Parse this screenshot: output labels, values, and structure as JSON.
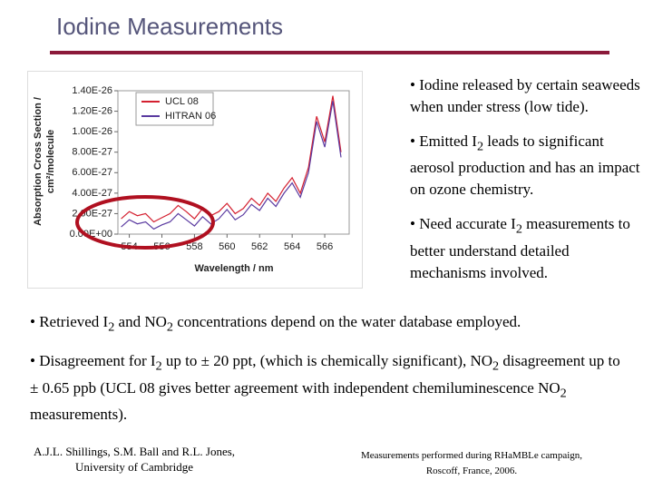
{
  "title": "Iodine Measurements",
  "chart_data": {
    "type": "line",
    "y_label": [
      "Absorption Cross Section /",
      "cm²/molecule"
    ],
    "x_label": "Wavelength / nm",
    "xlim": [
      553.3,
      567.5
    ],
    "xticks": [
      554,
      556,
      558,
      560,
      562,
      564,
      566
    ],
    "ylim": [
      0,
      1.4e-26
    ],
    "yticks": [
      {
        "value": 0,
        "label": "0.00E+00"
      },
      {
        "value": 2e-27,
        "label": "2.00E-27"
      },
      {
        "value": 4e-27,
        "label": "4.00E-27"
      },
      {
        "value": 6e-27,
        "label": "6.00E-27"
      },
      {
        "value": 8e-27,
        "label": "8.00E-27"
      },
      {
        "value": 1e-26,
        "label": "1.00E-26"
      },
      {
        "value": 1.2e-26,
        "label": "1.20E-26"
      },
      {
        "value": 1.4e-26,
        "label": "1.40E-26"
      }
    ],
    "legend": "upper left",
    "x": [
      553.5,
      554,
      554.5,
      555,
      555.5,
      556,
      556.5,
      557,
      557.5,
      558,
      558.5,
      559,
      559.5,
      560,
      560.5,
      561,
      561.5,
      562,
      562.5,
      563,
      563.5,
      564,
      564.5,
      565,
      565.5,
      566,
      566.5,
      567
    ],
    "series": [
      {
        "name": "UCL 08",
        "color": "#d42030",
        "values": [
          1.5e-27,
          2.2e-27,
          1.8e-27,
          2e-27,
          1.2e-27,
          1.6e-27,
          2e-27,
          2.8e-27,
          2.2e-27,
          1.5e-27,
          2.5e-27,
          1.8e-27,
          2.2e-27,
          3e-27,
          2e-27,
          2.5e-27,
          3.5e-27,
          2.8e-27,
          4e-27,
          3.2e-27,
          4.5e-27,
          5.5e-27,
          4e-27,
          6.5e-27,
          1.15e-26,
          9e-27,
          1.35e-26,
          8e-27
        ]
      },
      {
        "name": "HITRAN 06",
        "color": "#5a3aa0",
        "values": [
          7e-28,
          1.4e-27,
          1e-27,
          1.2e-27,
          5e-28,
          9e-28,
          1.2e-27,
          2e-27,
          1.4e-27,
          8e-28,
          1.7e-27,
          1e-27,
          1.5e-27,
          2.4e-27,
          1.4e-27,
          1.9e-27,
          2.9e-27,
          2.3e-27,
          3.5e-27,
          2.7e-27,
          4e-27,
          5e-27,
          3.6e-27,
          6e-27,
          1.1e-26,
          8.5e-27,
          1.3e-26,
          7.5e-27
        ]
      }
    ]
  },
  "right_bullets": [
    [
      "• Iodine released by certain seaweeds when under stress (low tide)."
    ],
    [
      "• Emitted I",
      "2",
      " leads to significant aerosol production and has an impact on ozone chemistry."
    ],
    [
      "• Need accurate I",
      "2",
      " measurements to better understand detailed mechanisms involved."
    ]
  ],
  "bottom_bullets": [
    [
      "• Retrieved I",
      "2",
      " and NO",
      "2",
      " concentrations depend on the water database employed."
    ],
    [
      "• Disagreement for I",
      "2",
      " up to ± 20 ppt, (which is chemically significant), NO",
      "2",
      " disagreement up to ± 0.65 ppb (UCL 08 gives better agreement with independent chemiluminescence NO",
      "2",
      " measurements)."
    ]
  ],
  "citation_left": "A.J.L. Shillings, S.M. Ball and R.L. Jones, University of Cambridge",
  "citation_right": "Measurements performed during RHaMBLe campaign, Roscoff, France, 2006."
}
